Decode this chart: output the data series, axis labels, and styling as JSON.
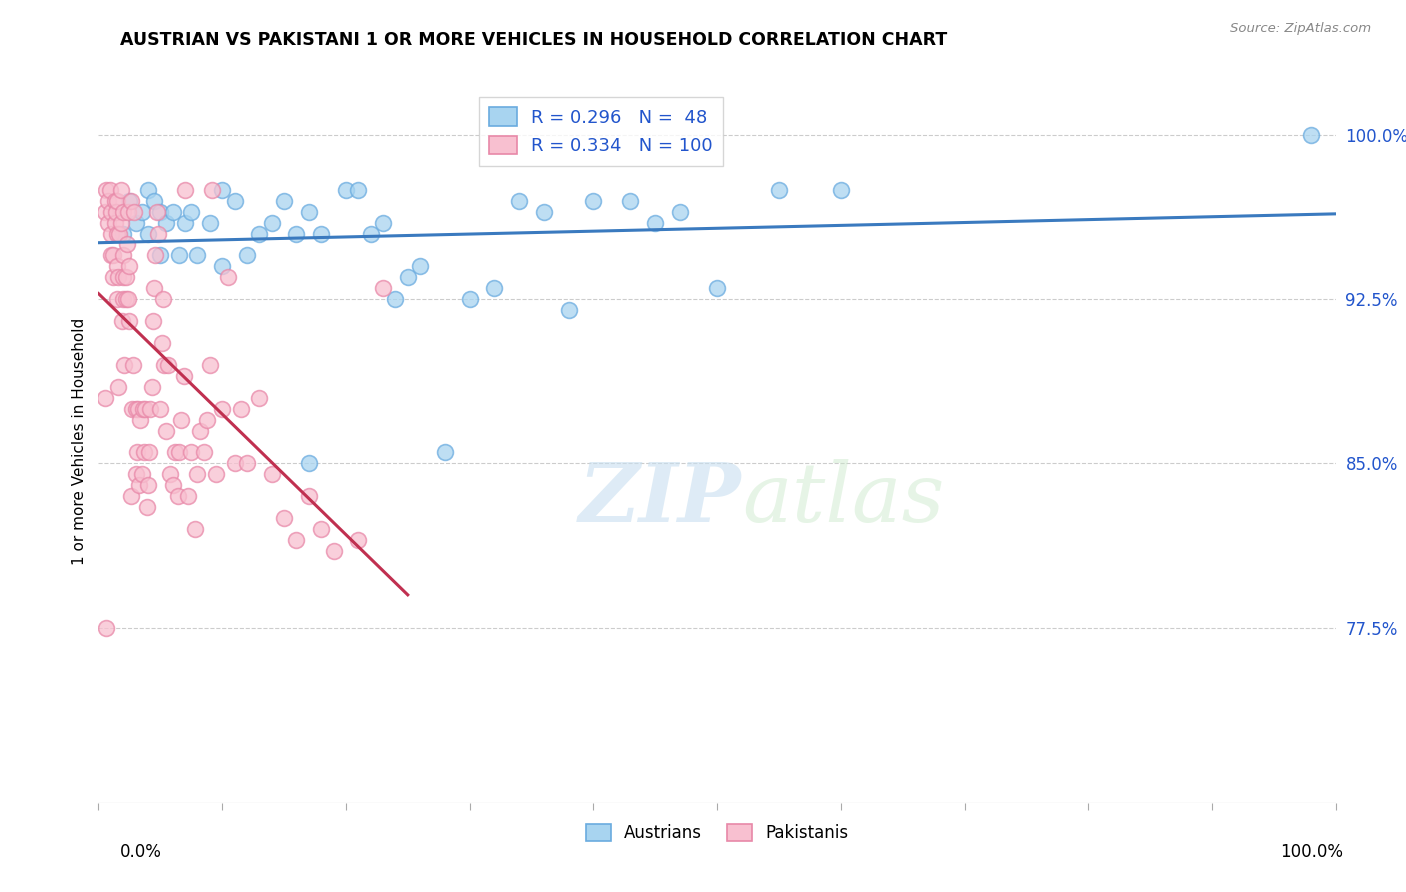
{
  "title": "AUSTRIAN VS PAKISTANI 1 OR MORE VEHICLES IN HOUSEHOLD CORRELATION CHART",
  "source": "Source: ZipAtlas.com",
  "ylabel": "1 or more Vehicles in Household",
  "ytick_labels": [
    "100.0%",
    "92.5%",
    "85.0%",
    "77.5%"
  ],
  "ytick_values": [
    1.0,
    0.925,
    0.85,
    0.775
  ],
  "xlim": [
    0.0,
    1.0
  ],
  "ylim": [
    0.695,
    1.025
  ],
  "R_austrians": 0.296,
  "N_austrians": 48,
  "R_pakistanis": 0.334,
  "N_pakistanis": 100,
  "color_austrians_face": "#a8d4f0",
  "color_austrians_edge": "#6aabdf",
  "color_pakistanis_face": "#f8c0d0",
  "color_pakistanis_edge": "#e888a8",
  "color_aus_line": "#3a7abf",
  "color_pak_line": "#c03050",
  "watermark_zip": "ZIP",
  "watermark_atlas": "atlas",
  "aus_x": [
    0.02,
    0.025,
    0.03,
    0.035,
    0.04,
    0.04,
    0.045,
    0.05,
    0.05,
    0.055,
    0.06,
    0.065,
    0.07,
    0.075,
    0.08,
    0.09,
    0.1,
    0.1,
    0.11,
    0.12,
    0.13,
    0.14,
    0.15,
    0.16,
    0.17,
    0.18,
    0.2,
    0.21,
    0.22,
    0.23,
    0.24,
    0.25,
    0.26,
    0.28,
    0.3,
    0.32,
    0.34,
    0.36,
    0.38,
    0.4,
    0.43,
    0.45,
    0.47,
    0.5,
    0.55,
    0.6,
    0.17,
    0.98
  ],
  "aus_y": [
    0.955,
    0.97,
    0.96,
    0.965,
    0.955,
    0.975,
    0.97,
    0.945,
    0.965,
    0.96,
    0.965,
    0.945,
    0.96,
    0.965,
    0.945,
    0.96,
    0.94,
    0.975,
    0.97,
    0.945,
    0.955,
    0.96,
    0.97,
    0.955,
    0.965,
    0.955,
    0.975,
    0.975,
    0.955,
    0.96,
    0.925,
    0.935,
    0.94,
    0.855,
    0.925,
    0.93,
    0.97,
    0.965,
    0.92,
    0.97,
    0.97,
    0.96,
    0.965,
    0.93,
    0.975,
    0.975,
    0.85,
    1.0
  ],
  "pak_x": [
    0.005,
    0.005,
    0.006,
    0.008,
    0.008,
    0.009,
    0.01,
    0.01,
    0.01,
    0.012,
    0.012,
    0.013,
    0.013,
    0.014,
    0.015,
    0.015,
    0.015,
    0.015,
    0.016,
    0.016,
    0.017,
    0.018,
    0.018,
    0.019,
    0.02,
    0.02,
    0.02,
    0.02,
    0.021,
    0.022,
    0.022,
    0.023,
    0.024,
    0.024,
    0.025,
    0.025,
    0.026,
    0.026,
    0.027,
    0.028,
    0.029,
    0.03,
    0.03,
    0.031,
    0.032,
    0.033,
    0.034,
    0.035,
    0.036,
    0.037,
    0.038,
    0.039,
    0.04,
    0.041,
    0.042,
    0.043,
    0.044,
    0.045,
    0.046,
    0.047,
    0.048,
    0.05,
    0.051,
    0.052,
    0.053,
    0.055,
    0.056,
    0.058,
    0.06,
    0.062,
    0.064,
    0.065,
    0.067,
    0.069,
    0.07,
    0.072,
    0.075,
    0.078,
    0.08,
    0.082,
    0.085,
    0.088,
    0.09,
    0.092,
    0.095,
    0.1,
    0.105,
    0.11,
    0.115,
    0.12,
    0.13,
    0.14,
    0.15,
    0.16,
    0.17,
    0.18,
    0.19,
    0.21,
    0.23,
    0.006
  ],
  "pak_y": [
    0.965,
    0.88,
    0.975,
    0.96,
    0.97,
    0.975,
    0.945,
    0.955,
    0.965,
    0.935,
    0.945,
    0.96,
    0.97,
    0.965,
    0.925,
    0.94,
    0.955,
    0.97,
    0.885,
    0.935,
    0.955,
    0.96,
    0.975,
    0.915,
    0.925,
    0.935,
    0.945,
    0.965,
    0.895,
    0.925,
    0.935,
    0.95,
    0.925,
    0.965,
    0.915,
    0.94,
    0.97,
    0.835,
    0.875,
    0.895,
    0.965,
    0.845,
    0.875,
    0.855,
    0.875,
    0.84,
    0.87,
    0.845,
    0.875,
    0.855,
    0.875,
    0.83,
    0.84,
    0.855,
    0.875,
    0.885,
    0.915,
    0.93,
    0.945,
    0.965,
    0.955,
    0.875,
    0.905,
    0.925,
    0.895,
    0.865,
    0.895,
    0.845,
    0.84,
    0.855,
    0.835,
    0.855,
    0.87,
    0.89,
    0.975,
    0.835,
    0.855,
    0.82,
    0.845,
    0.865,
    0.855,
    0.87,
    0.895,
    0.975,
    0.845,
    0.875,
    0.935,
    0.85,
    0.875,
    0.85,
    0.88,
    0.845,
    0.825,
    0.815,
    0.835,
    0.82,
    0.81,
    0.815,
    0.93,
    0.775
  ]
}
